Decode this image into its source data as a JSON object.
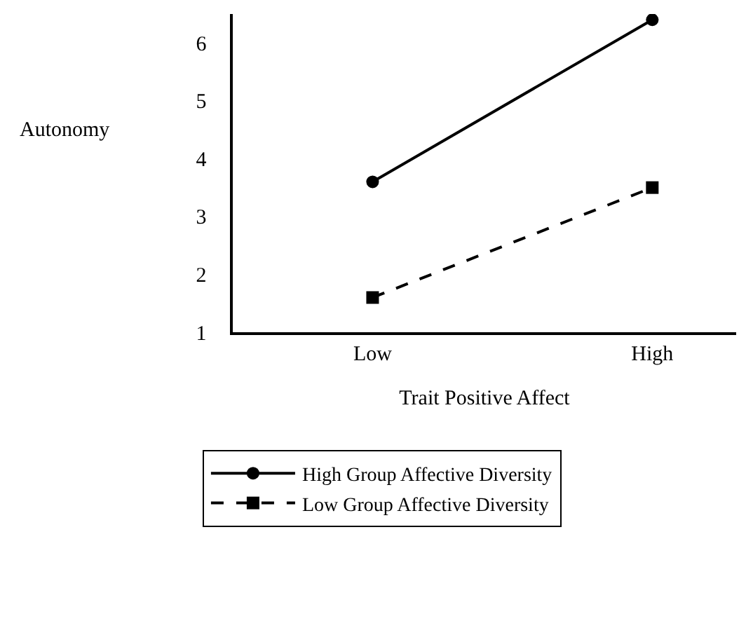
{
  "chart_data": {
    "type": "line",
    "xlabel": "Trait Positive Affect",
    "ylabel": "Autonomy",
    "categories": [
      "Low",
      "High"
    ],
    "series": [
      {
        "name": "High Group Affective Diversity",
        "color": "#000000",
        "values": [
          3.6,
          6.4
        ],
        "marker": "circle",
        "line_style": "solid"
      },
      {
        "name": "Low Group Affective Diversity",
        "color": "#000000",
        "values": [
          1.6,
          3.5
        ],
        "marker": "square",
        "line_style": "dashed"
      }
    ],
    "ylim": [
      1,
      6.5
    ],
    "yticks": [
      1,
      2,
      3,
      4,
      5,
      6
    ],
    "legend": "bottom"
  }
}
